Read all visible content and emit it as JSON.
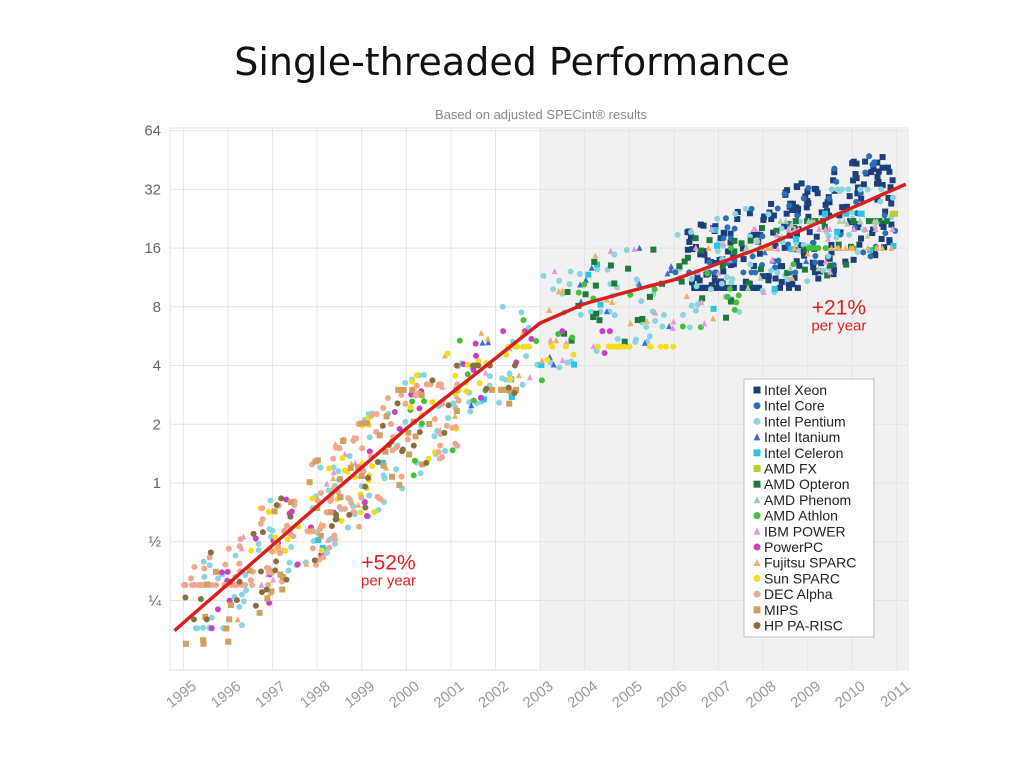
{
  "slide": {
    "title": "Single-threaded Performance"
  },
  "chart_data": {
    "type": "scatter",
    "title": "Based on adjusted SPECint® results",
    "xlabel": "",
    "ylabel": "",
    "y_scale": "log2",
    "xlim": [
      1994.7,
      2011.25
    ],
    "ylim": [
      0.11,
      66
    ],
    "x_tick_labels": [
      "1995",
      "1996",
      "1997",
      "1998",
      "1999",
      "2000",
      "2001",
      "2002",
      "2003",
      "2004",
      "2005",
      "2006",
      "2007",
      "2008",
      "2009",
      "2010",
      "2011"
    ],
    "y_ticks": [
      {
        "value": 0.25,
        "label": "¼"
      },
      {
        "value": 0.5,
        "label": "½"
      },
      {
        "value": 1,
        "label": "1"
      },
      {
        "value": 2,
        "label": "2"
      },
      {
        "value": 4,
        "label": "4"
      },
      {
        "value": 8,
        "label": "8"
      },
      {
        "value": 16,
        "label": "16"
      },
      {
        "value": 32,
        "label": "32"
      },
      {
        "value": 64,
        "label": "64"
      }
    ],
    "shaded_region_start": 2003.0,
    "legend_position": "right",
    "series": [
      {
        "name": "Intel Xeon",
        "marker": "square",
        "color": "#1a3f7a",
        "x_range": [
          2006.3,
          2011.0
        ],
        "y_range": [
          10,
          48
        ],
        "count": 220
      },
      {
        "name": "Intel Core",
        "marker": "circle",
        "color": "#2a6fb5",
        "x_range": [
          2006.0,
          2011.0
        ],
        "y_range": [
          12,
          56
        ],
        "count": 60
      },
      {
        "name": "Intel Pentium",
        "marker": "circle",
        "color": "#88d4e0",
        "x_range": [
          1995.2,
          2011.0
        ],
        "y_range": [
          0.18,
          32
        ],
        "count": 220
      },
      {
        "name": "Intel Itanium",
        "marker": "triangle",
        "color": "#3a6fd0",
        "x_range": [
          2001.0,
          2010.5
        ],
        "y_range": [
          2.5,
          16
        ],
        "count": 25
      },
      {
        "name": "Intel Celeron",
        "marker": "square",
        "color": "#2bc4e8",
        "x_range": [
          1997.5,
          2011.0
        ],
        "y_range": [
          0.4,
          24
        ],
        "count": 25
      },
      {
        "name": "AMD FX",
        "marker": "square",
        "color": "#b8d030",
        "x_range": [
          2010.9,
          2011.0
        ],
        "y_range": [
          20,
          24
        ],
        "count": 2
      },
      {
        "name": "AMD Opteron",
        "marker": "square",
        "color": "#1e7a3a",
        "x_range": [
          2003.5,
          2011.0
        ],
        "y_range": [
          5,
          22
        ],
        "count": 60
      },
      {
        "name": "AMD Phenom",
        "marker": "triangle",
        "color": "#a8d0a8",
        "x_range": [
          2007.5,
          2011.0
        ],
        "y_range": [
          10,
          22
        ],
        "count": 25
      },
      {
        "name": "AMD Athlon",
        "marker": "circle",
        "color": "#44c034",
        "x_range": [
          1999.5,
          2011.0
        ],
        "y_range": [
          1.0,
          16
        ],
        "count": 40
      },
      {
        "name": "IBM POWER",
        "marker": "triangle",
        "color": "#e79ad8",
        "x_range": [
          1996.0,
          2011.0
        ],
        "y_range": [
          0.3,
          20
        ],
        "count": 60
      },
      {
        "name": "PowerPC",
        "marker": "circle",
        "color": "#c840c8",
        "x_range": [
          1995.5,
          2005.0
        ],
        "y_range": [
          0.18,
          6
        ],
        "count": 40
      },
      {
        "name": "Fujitsu SPARC",
        "marker": "triangle",
        "color": "#f0b060",
        "x_range": [
          1996.0,
          2011.0
        ],
        "y_range": [
          0.2,
          16
        ],
        "count": 50
      },
      {
        "name": "Sun SPARC",
        "marker": "circle",
        "color": "#f5dd1c",
        "x_range": [
          1996.5,
          2006.0
        ],
        "y_range": [
          0.45,
          5
        ],
        "count": 80
      },
      {
        "name": "DEC Alpha",
        "marker": "circle",
        "color": "#f0a88c",
        "x_range": [
          1995.0,
          2001.2
        ],
        "y_range": [
          0.3,
          3.2
        ],
        "count": 130
      },
      {
        "name": "MIPS",
        "marker": "square",
        "color": "#d0a060",
        "x_range": [
          1995.0,
          2002.5
        ],
        "y_range": [
          0.15,
          3
        ],
        "count": 60
      },
      {
        "name": "HP PA-RISC",
        "marker": "circle",
        "color": "#8a7040",
        "x_range": [
          1995.0,
          2002.5
        ],
        "y_range": [
          0.2,
          4
        ],
        "count": 50
      }
    ],
    "trend_line": {
      "name": "trend",
      "color": "#d62020",
      "points": [
        [
          1994.8,
          0.175
        ],
        [
          2000.0,
          1.9
        ],
        [
          2003.0,
          6.6
        ],
        [
          2004.0,
          8.3
        ],
        [
          2005.0,
          9.6
        ],
        [
          2006.0,
          11.0
        ],
        [
          2008.0,
          16.2
        ],
        [
          2011.2,
          34.0
        ]
      ]
    },
    "annotations": [
      {
        "big": "+52%",
        "small": "per year",
        "x": 1999.6,
        "y": 0.36
      },
      {
        "big": "+21%",
        "small": "per year",
        "x": 2009.7,
        "y": 7.3
      }
    ]
  }
}
